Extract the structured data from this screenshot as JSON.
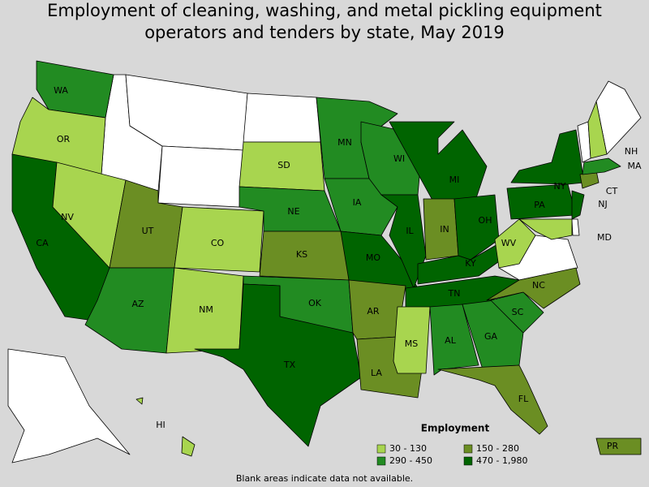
{
  "title_lines": [
    "Employment of cleaning, washing, and metal pickling equipment",
    "operators and tenders by state, May 2019"
  ],
  "states": [
    {
      "label": "WA",
      "color": "#228b22"
    },
    {
      "label": "OR",
      "color": "#a8d54f"
    },
    {
      "label": "CA",
      "color": "#006400"
    },
    {
      "label": "NV",
      "color": "#a8d54f"
    },
    {
      "label": "UT",
      "color": "#6b8e23"
    },
    {
      "label": "CO",
      "color": "#a8d54f"
    },
    {
      "label": "AZ",
      "color": "#228b22"
    },
    {
      "label": "NM",
      "color": "#a8d54f"
    },
    {
      "label": "SD",
      "color": "#a8d54f"
    },
    {
      "label": "NE",
      "color": "#228b22"
    },
    {
      "label": "KS",
      "color": "#6b8e23"
    },
    {
      "label": "OK",
      "color": "#228b22"
    },
    {
      "label": "TX",
      "color": "#006400"
    },
    {
      "label": "MN",
      "color": "#228b22"
    },
    {
      "label": "IA",
      "color": "#228b22"
    },
    {
      "label": "MO",
      "color": "#006400"
    },
    {
      "label": "AR",
      "color": "#6b8e23"
    },
    {
      "label": "LA",
      "color": "#6b8e23"
    },
    {
      "label": "WI",
      "color": "#228b22"
    },
    {
      "label": "IL",
      "color": "#006400"
    },
    {
      "label": "MI",
      "color": "#006400"
    },
    {
      "label": "IN",
      "color": "#6b8e23"
    },
    {
      "label": "OH",
      "color": "#006400"
    },
    {
      "label": "KY",
      "color": "#006400"
    },
    {
      "label": "TN",
      "color": "#006400"
    },
    {
      "label": "MS",
      "color": "#a8d54f"
    },
    {
      "label": "AL",
      "color": "#228b22"
    },
    {
      "label": "GA",
      "color": "#228b22"
    },
    {
      "label": "FL",
      "color": "#6b8e23"
    },
    {
      "label": "SC",
      "color": "#228b22"
    },
    {
      "label": "NC",
      "color": "#6b8e23"
    },
    {
      "label": "WV",
      "color": "#a8d54f"
    },
    {
      "label": "PA",
      "color": "#006400"
    },
    {
      "label": "NY",
      "color": "#006400"
    },
    {
      "label": "NJ",
      "color": "#006400"
    },
    {
      "label": "MD",
      "color": "#a8d54f"
    },
    {
      "label": "CT",
      "color": "#6b8e23"
    },
    {
      "label": "MA",
      "color": "#228b22"
    },
    {
      "label": "NH",
      "color": "#a8d54f"
    },
    {
      "label": "HI",
      "color": "#a8d54f"
    },
    {
      "label": "PR",
      "color": "#6b8e23"
    }
  ],
  "legend": {
    "title": "Employment",
    "items": [
      {
        "label": "30 - 130",
        "color": "#a8d54f"
      },
      {
        "label": "150 - 280",
        "color": "#6b8e23"
      },
      {
        "label": "290 - 450",
        "color": "#228b22"
      },
      {
        "label": "470 - 1,980",
        "color": "#006400"
      }
    ]
  },
  "note": "Blank areas indicate data not available."
}
